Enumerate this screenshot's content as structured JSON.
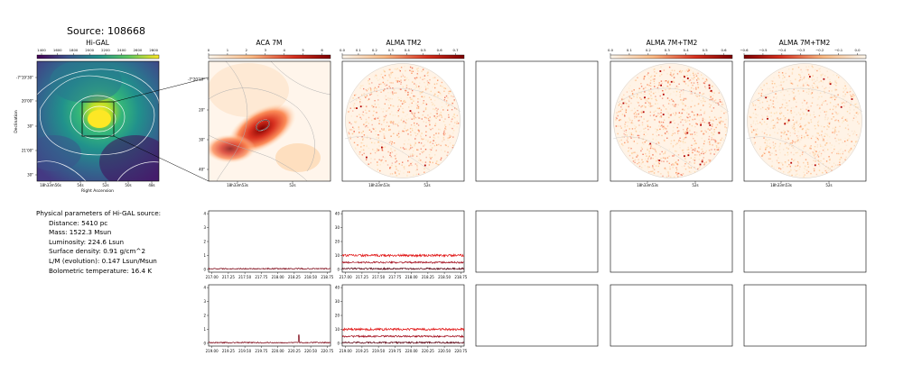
{
  "header": {
    "source_title": "Source: 108668"
  },
  "panels": {
    "higal": {
      "title": "Hi-GAL",
      "colorbar_ticks": [
        "1400",
        "1600",
        "1800",
        "2000",
        "2200",
        "2400",
        "2600",
        "2800"
      ],
      "ylabel": "Declination",
      "xlabel": "Right Ascension",
      "yticks": [
        "-7°19'30\"",
        "20'00\"",
        "30\"",
        "21'00\"",
        "30\""
      ],
      "xticks": [
        "18h33m56s",
        "54s",
        "52s",
        "50s",
        "48s"
      ]
    },
    "aca7m": {
      "title": "ACA 7M",
      "colorbar_ticks": [
        "0",
        "1",
        "2",
        "3",
        "4",
        "5",
        "6"
      ],
      "yticks": [
        "-7°20'10\"",
        "20\"",
        "30\"",
        "40\""
      ],
      "xticks": [
        "18h33m53s",
        "52s"
      ]
    },
    "tm2": {
      "title": "ALMA TM2",
      "colorbar_ticks": [
        "0.0",
        "0.1",
        "0.2",
        "0.3",
        "0.4",
        "0.5",
        "0.6",
        "0.7"
      ],
      "xticks": [
        "18h33m53s",
        "52s"
      ]
    },
    "combo1": {
      "title": "ALMA 7M+TM2",
      "colorbar_ticks": [
        "0.0",
        "0.1",
        "0.2",
        "0.3",
        "0.4",
        "0.5",
        "0.6"
      ],
      "xticks": [
        "18h33m53s",
        "52s"
      ]
    },
    "combo2": {
      "title": "ALMA 7M+TM2",
      "colorbar_ticks": [
        "−0.6",
        "−0.5",
        "−0.4",
        "−0.3",
        "−0.2",
        "−0.1",
        "0.0"
      ],
      "xticks": [
        "18h33m53s",
        "52s"
      ]
    }
  },
  "info": {
    "heading": "Physical parameters of Hi-GAL source:",
    "lines": [
      "Distance: 5410 pc",
      "Mass: 1522.3 Msun",
      "Luminosity: 224.6 Lsun",
      "Surface density: 0.91 g/cm^2",
      "L/M (evolution): 0.147 Lsun/Msun",
      "Bolometric temperature: 16.4 K"
    ]
  },
  "chart_data": [
    {
      "type": "line",
      "panel": "spectrum-aca-top",
      "x_ticks": [
        "217.00",
        "217.25",
        "217.50",
        "217.75",
        "218.00",
        "218.25",
        "218.50",
        "218.75"
      ],
      "y_ticks": [
        "0",
        "1",
        "2",
        "3",
        "4"
      ],
      "xlim": [
        216.95,
        218.8
      ],
      "ylim": [
        -0.2,
        4.2
      ],
      "series": [
        {
          "color": "#7a0010",
          "level": 0.05,
          "noise": 0.04
        }
      ]
    },
    {
      "type": "line",
      "panel": "spectrum-tm2-top",
      "x_ticks": [
        "217.00",
        "217.25",
        "217.50",
        "217.75",
        "218.00",
        "218.25",
        "218.50",
        "218.75"
      ],
      "y_ticks": [
        "0",
        "10",
        "20",
        "30",
        "40"
      ],
      "xlim": [
        216.95,
        218.8
      ],
      "ylim": [
        -2,
        42
      ],
      "series": [
        {
          "color": "#e01010",
          "level": 10,
          "noise": 0.8
        },
        {
          "color": "#a00818",
          "level": 5,
          "noise": 0.6
        },
        {
          "color": "#5a0010",
          "level": 0.5,
          "noise": 0.6
        }
      ]
    },
    {
      "type": "line",
      "panel": "spectrum-aca-bottom",
      "x_ticks": [
        "219.00",
        "219.25",
        "219.50",
        "219.75",
        "220.00",
        "220.25",
        "220.50",
        "220.75"
      ],
      "y_ticks": [
        "0",
        "1",
        "2",
        "3",
        "4"
      ],
      "xlim": [
        218.95,
        220.8
      ],
      "ylim": [
        -0.2,
        4.2
      ],
      "series": [
        {
          "color": "#7a0010",
          "level": 0.05,
          "noise": 0.04,
          "spike_at": 220.32,
          "spike_height": 0.6
        }
      ]
    },
    {
      "type": "line",
      "panel": "spectrum-tm2-bottom",
      "x_ticks": [
        "219.00",
        "219.25",
        "219.50",
        "219.75",
        "220.00",
        "220.25",
        "220.50",
        "220.75"
      ],
      "y_ticks": [
        "0",
        "10",
        "20",
        "30",
        "40"
      ],
      "xlim": [
        218.95,
        220.8
      ],
      "ylim": [
        -2,
        42
      ],
      "series": [
        {
          "color": "#e01010",
          "level": 10,
          "noise": 0.8
        },
        {
          "color": "#a00818",
          "level": 5,
          "noise": 0.6
        },
        {
          "color": "#5a0010",
          "level": 0.5,
          "noise": 0.6
        }
      ]
    }
  ]
}
